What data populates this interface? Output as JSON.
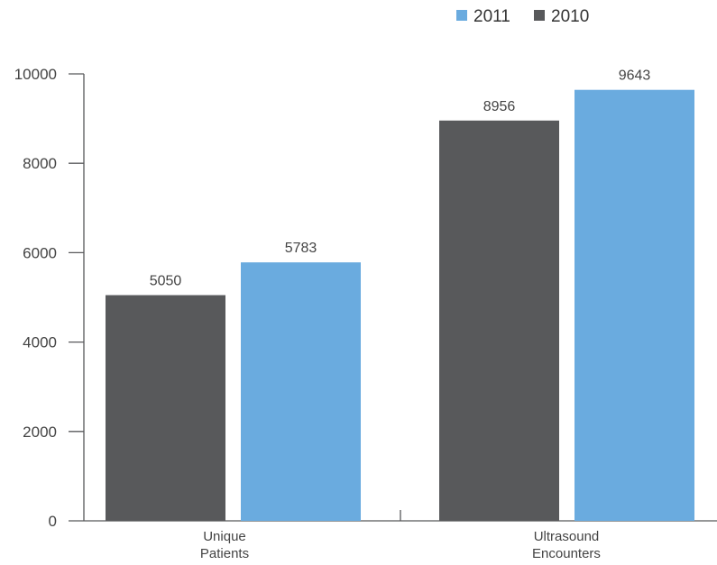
{
  "chart_data": {
    "type": "bar",
    "categories": [
      [
        "Unique",
        "Patients"
      ],
      [
        "Ultrasound",
        "Encounters"
      ]
    ],
    "series": [
      {
        "name": "2010",
        "color": "#58595b",
        "values": [
          5050,
          8956
        ]
      },
      {
        "name": "2011",
        "color": "#6aabdf",
        "values": [
          5783,
          9643
        ]
      }
    ],
    "legend": {
      "position": "top-right",
      "entries": [
        {
          "name": "2011",
          "color": "#6aabdf"
        },
        {
          "name": "2010",
          "color": "#58595b"
        }
      ]
    },
    "ylim": [
      0,
      10000
    ],
    "yticks": [
      0,
      2000,
      4000,
      6000,
      8000,
      10000
    ],
    "grid": false,
    "title": "",
    "xlabel": "",
    "ylabel": ""
  }
}
